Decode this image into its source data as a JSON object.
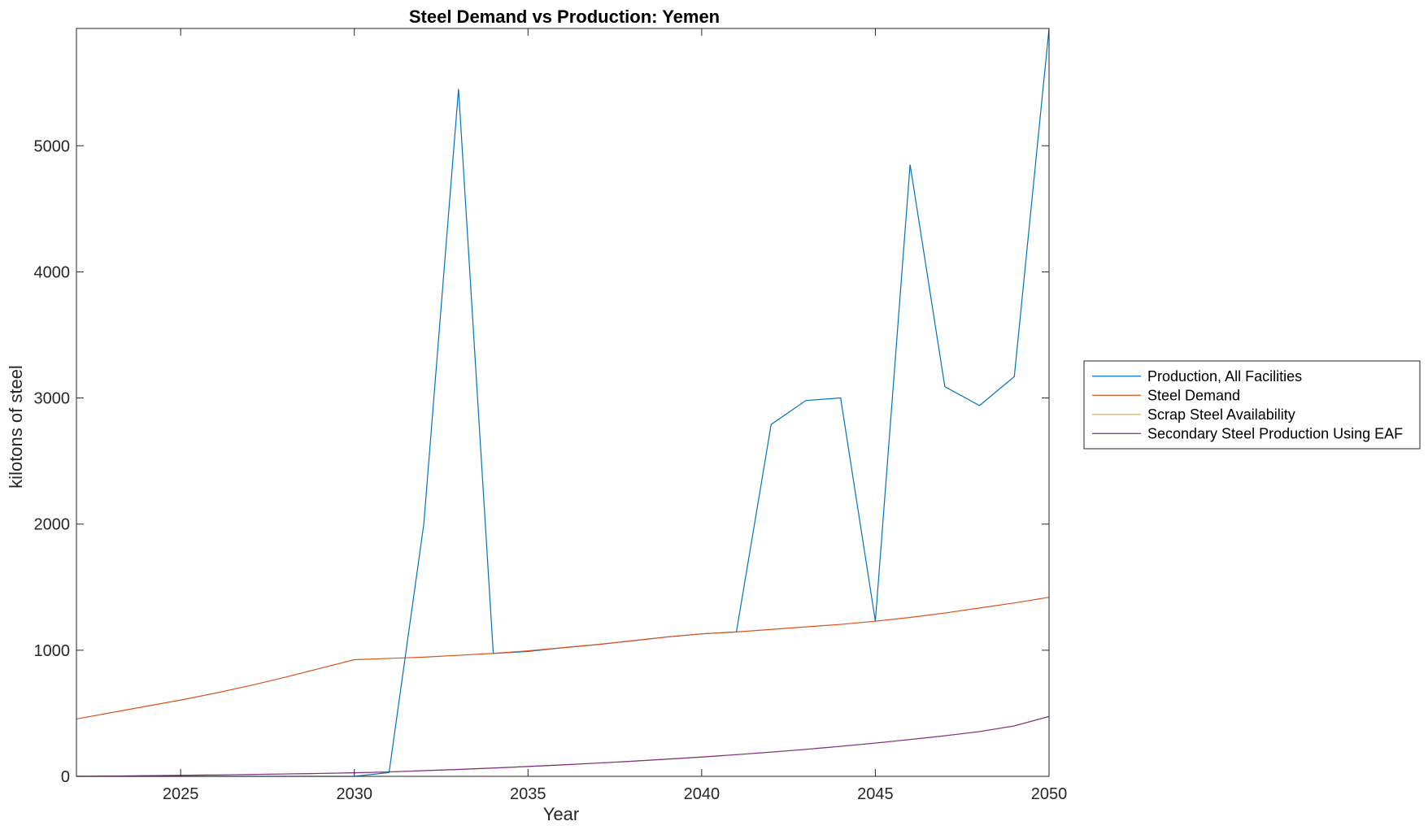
{
  "chart_data": {
    "type": "line",
    "title": "Steel Demand vs Production: Yemen",
    "xlabel": "Year",
    "ylabel": "kilotons of steel",
    "xlim": [
      2022,
      2050
    ],
    "ylim": [
      0,
      5930
    ],
    "xticks": [
      2025,
      2030,
      2035,
      2040,
      2045,
      2050
    ],
    "yticks": [
      0,
      1000,
      2000,
      3000,
      4000,
      5000
    ],
    "grid": false,
    "legend_position": "outside-right",
    "x": [
      2022,
      2023,
      2024,
      2025,
      2026,
      2027,
      2028,
      2029,
      2030,
      2031,
      2032,
      2033,
      2034,
      2035,
      2036,
      2037,
      2038,
      2039,
      2040,
      2041,
      2042,
      2043,
      2044,
      2045,
      2046,
      2047,
      2048,
      2049,
      2050
    ],
    "series": [
      {
        "name": "Production, All Facilities",
        "color": "#0072bd",
        "values": [
          0,
          0,
          0,
          0,
          0,
          0,
          0,
          0,
          0,
          30,
          2000,
          5450,
          975,
          990,
          1020,
          1045,
          1075,
          1105,
          1130,
          1145,
          2790,
          2980,
          3000,
          1230,
          4850,
          3090,
          2940,
          3170,
          5930
        ]
      },
      {
        "name": "Steel Demand",
        "color": "#d95319",
        "values": [
          455,
          505,
          555,
          605,
          660,
          720,
          785,
          855,
          925,
          935,
          945,
          960,
          975,
          995,
          1020,
          1045,
          1075,
          1105,
          1130,
          1145,
          1165,
          1185,
          1205,
          1230,
          1260,
          1295,
          1335,
          1375,
          1420
        ]
      },
      {
        "name": "Scrap Steel Availability",
        "color": "#edb120",
        "values": [
          0,
          2,
          5,
          8,
          11,
          15,
          19,
          23,
          28,
          35,
          45,
          55,
          66,
          78,
          91,
          105,
          120,
          136,
          153,
          172,
          192,
          214,
          238,
          264,
          292,
          322,
          355,
          400,
          475
        ]
      },
      {
        "name": "Secondary Steel Production Using EAF",
        "color": "#7e2f8e",
        "values": [
          0,
          2,
          5,
          8,
          11,
          15,
          19,
          23,
          28,
          35,
          45,
          55,
          66,
          78,
          91,
          105,
          120,
          136,
          153,
          172,
          192,
          214,
          238,
          264,
          292,
          322,
          355,
          400,
          475
        ]
      }
    ]
  }
}
